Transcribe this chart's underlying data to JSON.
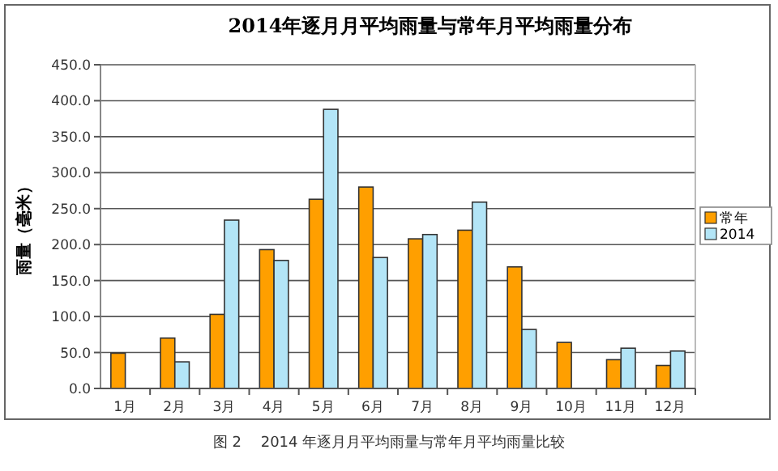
{
  "chart_data": {
    "type": "bar",
    "title": "2014年逐月月平均雨量与常年月平均雨量分布",
    "ylabel": "雨量（毫米）",
    "categories": [
      "1月",
      "2月",
      "3月",
      "4月",
      "5月",
      "6月",
      "7月",
      "8月",
      "9月",
      "10月",
      "11月",
      "12月"
    ],
    "series": [
      {
        "name": "常年",
        "color": "#ff9f00",
        "values": [
          49,
          70,
          103,
          193,
          263,
          280,
          208,
          220,
          169,
          64,
          40,
          32
        ]
      },
      {
        "name": "2014",
        "color": "#b3e5f7",
        "values": [
          0,
          37,
          234,
          178,
          388,
          182,
          214,
          259,
          82,
          0,
          56,
          52
        ]
      }
    ],
    "ylim": [
      0,
      450
    ],
    "yticks": [
      {
        "value": 0,
        "label": "0.0"
      },
      {
        "value": 50,
        "label": "50.0"
      },
      {
        "value": 100,
        "label": "100.0"
      },
      {
        "value": 150,
        "label": "150.0"
      },
      {
        "value": 200,
        "label": "200.0"
      },
      {
        "value": 250,
        "label": "250.0"
      },
      {
        "value": 300,
        "label": "300.0"
      },
      {
        "value": 350,
        "label": "350.0"
      },
      {
        "value": 400,
        "label": "400.0"
      },
      {
        "value": 450,
        "label": "450.0"
      }
    ],
    "grid": "y",
    "legend": "right",
    "annotations": [
      "图 2　 2014 年逐月月平均雨量与常年月平均雨量比较"
    ]
  }
}
